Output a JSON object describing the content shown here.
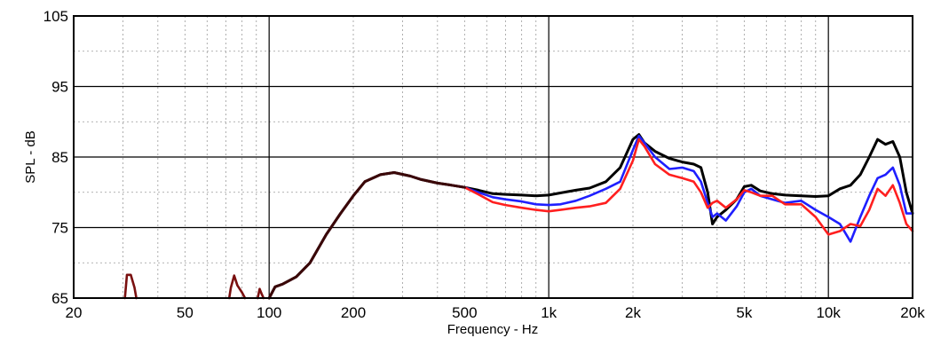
{
  "chart_data": {
    "type": "line",
    "xlabel": "Frequency - Hz",
    "ylabel": "SPL - dB",
    "xscale": "log",
    "xlim": [
      20,
      20000
    ],
    "ylim": [
      65,
      105
    ],
    "grid": true,
    "x_ticks": [
      {
        "value": 20,
        "label": "20"
      },
      {
        "value": 50,
        "label": "50"
      },
      {
        "value": 100,
        "label": "100"
      },
      {
        "value": 200,
        "label": "200"
      },
      {
        "value": 500,
        "label": "500"
      },
      {
        "value": 1000,
        "label": "1k"
      },
      {
        "value": 2000,
        "label": "2k"
      },
      {
        "value": 5000,
        "label": "5k"
      },
      {
        "value": 10000,
        "label": "10k"
      },
      {
        "value": 20000,
        "label": "20k"
      }
    ],
    "y_ticks": [
      {
        "value": 65,
        "label": "65"
      },
      {
        "value": 75,
        "label": "75"
      },
      {
        "value": 85,
        "label": "85"
      },
      {
        "value": 95,
        "label": "95"
      },
      {
        "value": 105,
        "label": "105"
      }
    ],
    "series": [
      {
        "color": "#000000",
        "points": [
          [
            100,
            65.0
          ],
          [
            105,
            66.6
          ],
          [
            112,
            67.0
          ],
          [
            125,
            68.0
          ],
          [
            140,
            70.0
          ],
          [
            160,
            74.0
          ],
          [
            180,
            77.0
          ],
          [
            200,
            79.5
          ],
          [
            220,
            81.5
          ],
          [
            250,
            82.5
          ],
          [
            280,
            82.8
          ],
          [
            320,
            82.3
          ],
          [
            350,
            81.8
          ],
          [
            400,
            81.3
          ],
          [
            450,
            81.0
          ],
          [
            500,
            80.7
          ],
          [
            560,
            80.3
          ],
          [
            630,
            79.8
          ],
          [
            700,
            79.7
          ],
          [
            800,
            79.6
          ],
          [
            900,
            79.5
          ],
          [
            1000,
            79.6
          ],
          [
            1100,
            79.9
          ],
          [
            1250,
            80.3
          ],
          [
            1400,
            80.6
          ],
          [
            1600,
            81.5
          ],
          [
            1800,
            83.5
          ],
          [
            2000,
            87.5
          ],
          [
            2100,
            88.2
          ],
          [
            2200,
            87.0
          ],
          [
            2400,
            85.8
          ],
          [
            2700,
            84.8
          ],
          [
            3000,
            84.3
          ],
          [
            3300,
            84.0
          ],
          [
            3500,
            83.5
          ],
          [
            3700,
            80.0
          ],
          [
            3850,
            75.5
          ],
          [
            4000,
            76.5
          ],
          [
            4300,
            77.5
          ],
          [
            4700,
            79.0
          ],
          [
            5000,
            80.8
          ],
          [
            5300,
            81.0
          ],
          [
            5700,
            80.2
          ],
          [
            6300,
            79.8
          ],
          [
            7000,
            79.6
          ],
          [
            8000,
            79.5
          ],
          [
            9000,
            79.4
          ],
          [
            10000,
            79.5
          ],
          [
            11000,
            80.5
          ],
          [
            12000,
            81.0
          ],
          [
            13000,
            82.5
          ],
          [
            14000,
            85.0
          ],
          [
            15000,
            87.5
          ],
          [
            16000,
            86.8
          ],
          [
            17000,
            87.2
          ],
          [
            18000,
            85.0
          ],
          [
            19000,
            80.0
          ],
          [
            20000,
            77.0
          ]
        ]
      },
      {
        "color": "#1f1fff",
        "points": [
          [
            100,
            65.0
          ],
          [
            105,
            66.6
          ],
          [
            112,
            67.0
          ],
          [
            125,
            68.0
          ],
          [
            140,
            70.0
          ],
          [
            160,
            74.0
          ],
          [
            180,
            77.0
          ],
          [
            200,
            79.5
          ],
          [
            220,
            81.5
          ],
          [
            250,
            82.5
          ],
          [
            280,
            82.8
          ],
          [
            320,
            82.3
          ],
          [
            350,
            81.8
          ],
          [
            400,
            81.3
          ],
          [
            450,
            81.0
          ],
          [
            500,
            80.7
          ],
          [
            560,
            80.0
          ],
          [
            630,
            79.3
          ],
          [
            700,
            79.0
          ],
          [
            800,
            78.7
          ],
          [
            900,
            78.3
          ],
          [
            1000,
            78.2
          ],
          [
            1100,
            78.3
          ],
          [
            1250,
            78.8
          ],
          [
            1400,
            79.5
          ],
          [
            1600,
            80.5
          ],
          [
            1800,
            81.5
          ],
          [
            2000,
            86.0
          ],
          [
            2100,
            88.0
          ],
          [
            2200,
            87.0
          ],
          [
            2400,
            85.0
          ],
          [
            2700,
            83.3
          ],
          [
            3000,
            83.5
          ],
          [
            3300,
            83.0
          ],
          [
            3500,
            81.5
          ],
          [
            3700,
            78.5
          ],
          [
            3850,
            76.5
          ],
          [
            4000,
            77.0
          ],
          [
            4300,
            76.0
          ],
          [
            4700,
            78.0
          ],
          [
            5000,
            80.0
          ],
          [
            5300,
            80.5
          ],
          [
            5700,
            79.5
          ],
          [
            6300,
            79.0
          ],
          [
            7000,
            78.5
          ],
          [
            8000,
            78.8
          ],
          [
            9000,
            77.5
          ],
          [
            10000,
            76.5
          ],
          [
            11000,
            75.5
          ],
          [
            12000,
            73.0
          ],
          [
            13000,
            76.5
          ],
          [
            14000,
            79.5
          ],
          [
            15000,
            82.0
          ],
          [
            16000,
            82.5
          ],
          [
            17000,
            83.5
          ],
          [
            18000,
            81.0
          ],
          [
            19000,
            77.0
          ],
          [
            20000,
            77.0
          ]
        ]
      },
      {
        "color": "#ff1f1f",
        "points": [
          [
            100,
            65.0
          ],
          [
            105,
            66.6
          ],
          [
            112,
            67.0
          ],
          [
            125,
            68.0
          ],
          [
            140,
            70.0
          ],
          [
            160,
            74.0
          ],
          [
            180,
            77.0
          ],
          [
            200,
            79.5
          ],
          [
            220,
            81.5
          ],
          [
            250,
            82.5
          ],
          [
            280,
            82.8
          ],
          [
            320,
            82.3
          ],
          [
            350,
            81.8
          ],
          [
            400,
            81.3
          ],
          [
            450,
            81.0
          ],
          [
            500,
            80.7
          ],
          [
            560,
            79.7
          ],
          [
            630,
            78.6
          ],
          [
            700,
            78.2
          ],
          [
            800,
            77.8
          ],
          [
            900,
            77.5
          ],
          [
            1000,
            77.3
          ],
          [
            1100,
            77.5
          ],
          [
            1250,
            77.8
          ],
          [
            1400,
            78.0
          ],
          [
            1600,
            78.5
          ],
          [
            1800,
            80.5
          ],
          [
            2000,
            84.5
          ],
          [
            2100,
            87.5
          ],
          [
            2200,
            86.5
          ],
          [
            2400,
            84.0
          ],
          [
            2700,
            82.5
          ],
          [
            3000,
            82.0
          ],
          [
            3300,
            81.5
          ],
          [
            3500,
            80.0
          ],
          [
            3700,
            77.8
          ],
          [
            3850,
            78.5
          ],
          [
            4000,
            78.8
          ],
          [
            4300,
            77.8
          ],
          [
            4700,
            79.0
          ],
          [
            5000,
            80.3
          ],
          [
            5300,
            80.0
          ],
          [
            5700,
            79.5
          ],
          [
            6300,
            79.5
          ],
          [
            7000,
            78.3
          ],
          [
            8000,
            78.3
          ],
          [
            9000,
            76.5
          ],
          [
            10000,
            74.0
          ],
          [
            11000,
            74.5
          ],
          [
            12000,
            75.5
          ],
          [
            13000,
            75.2
          ],
          [
            14000,
            77.5
          ],
          [
            15000,
            80.5
          ],
          [
            16000,
            79.5
          ],
          [
            17000,
            81.0
          ],
          [
            18000,
            78.5
          ],
          [
            19000,
            75.5
          ],
          [
            20000,
            74.5
          ]
        ]
      },
      {
        "color": "#7a1010",
        "points": [
          [
            30.5,
            65.0
          ],
          [
            31,
            68.3
          ],
          [
            32,
            68.3
          ],
          [
            33,
            66.5
          ],
          [
            33.5,
            65.0
          ]
        ]
      },
      {
        "color": "#7a1010",
        "points": [
          [
            72,
            65.0
          ],
          [
            73,
            66.5
          ],
          [
            75,
            68.2
          ],
          [
            77,
            66.8
          ],
          [
            80,
            65.8
          ],
          [
            82,
            65.0
          ]
        ]
      },
      {
        "color": "#7a1010",
        "points": [
          [
            91,
            65.0
          ],
          [
            92.5,
            66.3
          ],
          [
            94,
            65.6
          ],
          [
            95.5,
            65.0
          ]
        ]
      }
    ]
  }
}
